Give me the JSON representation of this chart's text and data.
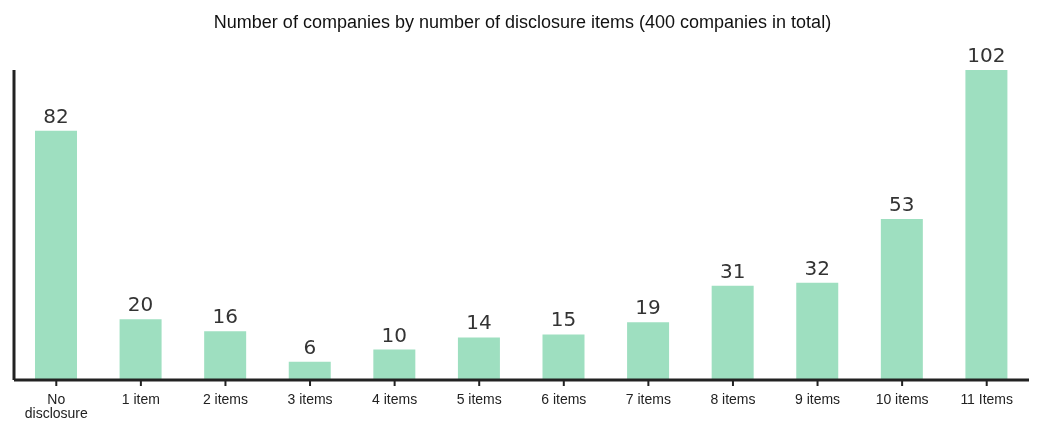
{
  "chart_data": {
    "type": "bar",
    "title": "Number of companies by number of disclosure items (400 companies in total)",
    "categories": [
      "No disclosure",
      "1 item",
      "2 items",
      "3 items",
      "4 items",
      "5 items",
      "6 items",
      "7 items",
      "8 items",
      "9 items",
      "10 items",
      "11 Items"
    ],
    "values": [
      82,
      20,
      16,
      6,
      10,
      14,
      15,
      19,
      31,
      32,
      53,
      102
    ],
    "color": "#9edfc0",
    "data_labels": true,
    "grid": false,
    "legend": false
  }
}
